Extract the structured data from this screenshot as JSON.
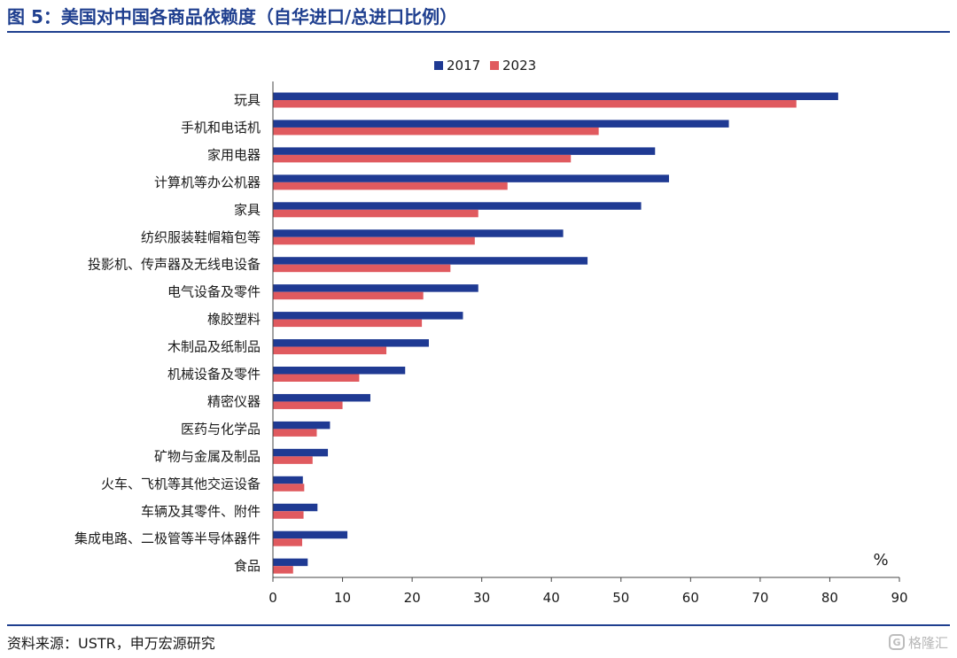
{
  "title": "图 5：美国对中国各商品依赖度（自华进口/总进口比例）",
  "source": "资料来源：USTR，申万宏源研究",
  "watermark": "格隆汇",
  "watermark_logo": "G",
  "colors": {
    "s2017": "#1f3a93",
    "s2023": "#e05a5f",
    "axis": "#444444",
    "title": "#1f3f8f"
  },
  "chart_data": {
    "type": "bar",
    "orientation": "horizontal",
    "unit_label": "%",
    "xlim": [
      0,
      90
    ],
    "xticks": [
      0,
      10,
      20,
      30,
      40,
      50,
      60,
      70,
      80,
      90
    ],
    "legend_position": "top-center",
    "grid": false,
    "categories": [
      "玩具",
      "手机和电话机",
      "家用电器",
      "计算机等办公机器",
      "家具",
      "纺织服装鞋帽箱包等",
      "投影机、传声器及无线电设备",
      "电气设备及零件",
      "橡胶塑料",
      "木制品及纸制品",
      "机械设备及零件",
      "精密仪器",
      "医药与化学品",
      "矿物与金属及制品",
      "火车、飞机等其他交运设备",
      "车辆及其零件、附件",
      "集成电路、二极管等半导体器件",
      "食品"
    ],
    "series": [
      {
        "name": "2017",
        "values": [
          81.2,
          65.5,
          54.9,
          56.9,
          52.9,
          41.7,
          45.2,
          29.5,
          27.3,
          22.4,
          19.0,
          14.0,
          8.2,
          7.9,
          4.3,
          6.4,
          10.7,
          5.0
        ]
      },
      {
        "name": "2023",
        "values": [
          75.2,
          46.8,
          42.8,
          33.7,
          29.5,
          29.0,
          25.5,
          21.6,
          21.4,
          16.3,
          12.4,
          10.0,
          6.3,
          5.7,
          4.5,
          4.4,
          4.2,
          2.9
        ]
      }
    ]
  }
}
